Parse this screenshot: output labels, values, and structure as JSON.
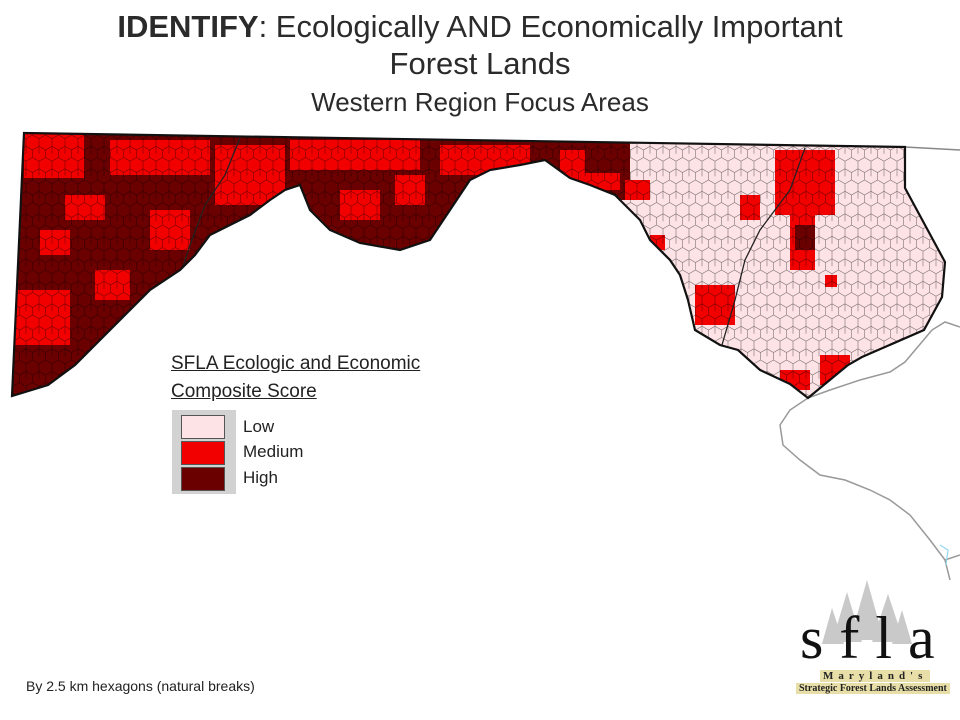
{
  "title": {
    "prefix": "IDENTIFY",
    "rest": ":  Ecologically AND Economically Important",
    "line2": "Forest Lands",
    "subtitle": "Western Region Focus Areas"
  },
  "legend": {
    "title_line1": "SFLA Ecologic and Economic",
    "title_line2": "Composite Score",
    "items": [
      {
        "label": "Low",
        "color": "#fde3e6"
      },
      {
        "label": "Medium",
        "color": "#f20000"
      },
      {
        "label": "High",
        "color": "#6b0000"
      }
    ]
  },
  "footnote": "By 2.5 km hexagons (natural breaks)",
  "logo": {
    "letters": "sfla",
    "line1": "Maryland's",
    "line2": "Strategic Forest Lands Assessment"
  }
}
